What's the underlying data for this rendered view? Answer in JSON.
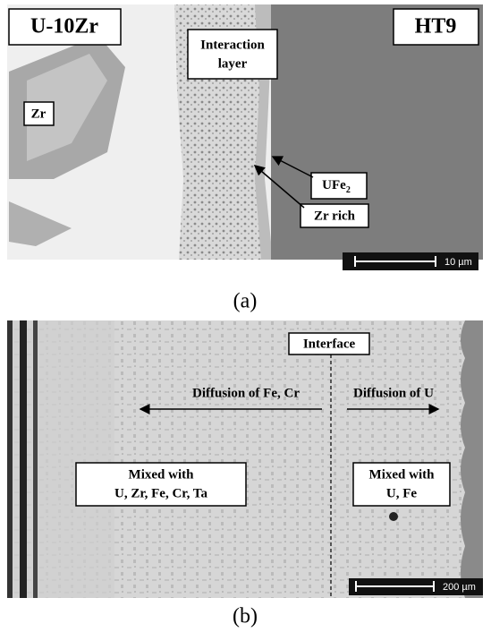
{
  "panel_a": {
    "labels": {
      "alloy": "U-10Zr",
      "steel": "HT9",
      "interaction_layer": [
        "Interaction",
        "layer"
      ],
      "zr": "Zr",
      "ufe2": {
        "main": "UFe",
        "sub": "2"
      },
      "zr_rich": "Zr rich"
    },
    "scale_bar": "10 µm",
    "caption": "(a)"
  },
  "panel_b": {
    "labels": {
      "interface": "Interface",
      "diffusion_left": "Diffusion of Fe, Cr",
      "diffusion_right": "Diffusion of U",
      "mixed_left": [
        "Mixed with",
        "U, Zr, Fe, Cr, Ta"
      ],
      "mixed_right": [
        "Mixed with",
        "U, Fe"
      ]
    },
    "scale_bar": "200 µm",
    "caption": "(b)"
  }
}
